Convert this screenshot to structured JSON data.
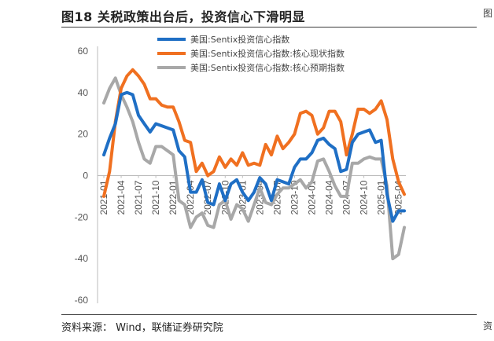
{
  "title": "图18 关税政策出台后，投资信心下滑明显",
  "source": "资料来源： Wind，联储证券研究院",
  "edge_glyph_top": "图",
  "edge_glyph_bottom": "资",
  "chart_data": {
    "type": "line",
    "title": "",
    "xlabel": "",
    "ylabel": "",
    "ylim": [
      -60,
      60
    ],
    "yticks": [
      60,
      40,
      20,
      0,
      -20,
      -40,
      -60
    ],
    "grid": false,
    "legend_position": "top-center",
    "x": [
      "2021-01",
      "2021-02",
      "2021-03",
      "2021-04",
      "2021-05",
      "2021-06",
      "2021-07",
      "2021-08",
      "2021-09",
      "2021-10",
      "2021-11",
      "2021-12",
      "2022-01",
      "2022-02",
      "2022-03",
      "2022-04",
      "2022-05",
      "2022-06",
      "2022-07",
      "2022-08",
      "2022-09",
      "2022-10",
      "2022-11",
      "2022-12",
      "2023-01",
      "2023-02",
      "2023-03",
      "2023-04",
      "2023-05",
      "2023-06",
      "2023-07",
      "2023-08",
      "2023-09",
      "2023-10",
      "2023-11",
      "2023-12",
      "2024-01",
      "2024-02",
      "2024-03",
      "2024-04",
      "2024-05",
      "2024-06",
      "2024-07",
      "2024-08",
      "2024-09",
      "2024-10",
      "2024-11",
      "2024-12",
      "2025-01",
      "2025-02",
      "2025-03",
      "2025-04",
      "2025-05"
    ],
    "xtick_labels": [
      "2021-01",
      "2021-04",
      "2021-07",
      "2021-10",
      "2022-01",
      "2022-04",
      "2022-07",
      "2022-10",
      "2023-01",
      "2023-04",
      "2023-07",
      "2023-10",
      "2024-01",
      "2024-04",
      "2024-07",
      "2024-10",
      "2025-01",
      "2025-04"
    ],
    "series": [
      {
        "name": "美国:Sentix投资信心指数",
        "color": "#1f6fc5",
        "values": [
          10,
          18,
          25,
          39,
          40,
          39,
          29,
          25,
          21,
          25,
          24,
          23,
          22,
          12,
          9,
          -8,
          -8,
          -2,
          -13,
          -14,
          -4,
          -12,
          -4,
          -2,
          -8,
          -12,
          -8,
          -1,
          -4,
          -12,
          -2,
          -3,
          -4,
          4,
          8,
          8,
          11,
          17,
          18,
          15,
          13,
          2,
          3,
          16,
          20,
          21,
          22,
          16,
          17,
          -9,
          -22,
          -17,
          -17
        ]
      },
      {
        "name": "美国:Sentix投资信心指数:核心现状指数",
        "color": "#f07020",
        "values": [
          -10,
          2,
          26,
          42,
          48,
          51,
          48,
          44,
          37,
          37,
          34,
          33,
          33,
          26,
          17,
          16,
          2,
          6,
          0,
          2,
          9,
          4,
          8,
          5,
          11,
          5,
          6,
          5,
          15,
          10,
          19,
          13,
          16,
          20,
          30,
          31,
          29,
          20,
          23,
          31,
          31,
          26,
          10,
          20,
          32,
          32,
          30,
          32,
          36,
          27,
          8,
          -3,
          -9
        ]
      },
      {
        "name": "美国:Sentix投资信心指数:核心预期指数",
        "color": "#a8a8a8",
        "values": [
          35,
          42,
          47,
          39,
          33,
          26,
          16,
          8,
          6,
          14,
          14,
          12,
          10,
          -12,
          -14,
          -25,
          -20,
          -18,
          -24,
          -25,
          -14,
          -12,
          -21,
          -14,
          -16,
          -22,
          -14,
          -6,
          -13,
          -14,
          -9,
          -6,
          -6,
          -4,
          -2,
          -6,
          -3,
          7,
          8,
          2,
          -5,
          -10,
          -10,
          6,
          6,
          8,
          9,
          8,
          8,
          -5,
          -40,
          -38,
          -25
        ]
      }
    ]
  }
}
